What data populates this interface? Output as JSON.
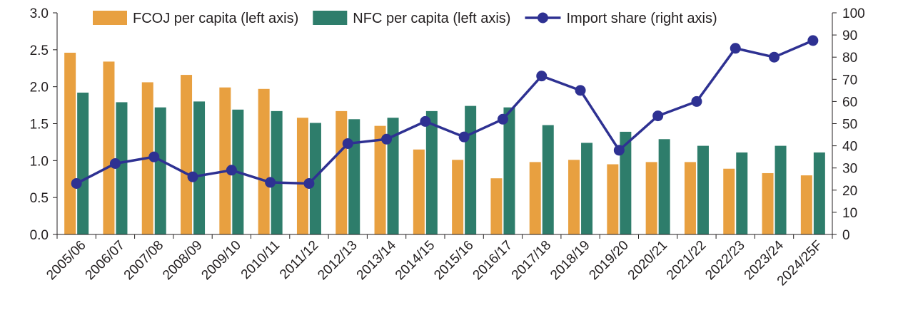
{
  "chart_data": {
    "type": "bar",
    "categories": [
      "2005/06",
      "2006/07",
      "2007/08",
      "2008/09",
      "2009/10",
      "2010/11",
      "2011/12",
      "2012/13",
      "2013/14",
      "2014/15",
      "2015/16",
      "2016/17",
      "2017/18",
      "2018/19",
      "2019/20",
      "2020/21",
      "2021/22",
      "2022/23",
      "2023/24",
      "2024/25F"
    ],
    "series": [
      {
        "name": "FCOJ per capita (left axis)",
        "kind": "bar",
        "axis": "left",
        "color": "#e8a040",
        "values": [
          2.46,
          2.34,
          2.06,
          2.16,
          1.99,
          1.97,
          1.58,
          1.67,
          1.47,
          1.15,
          1.01,
          0.76,
          0.98,
          1.01,
          0.95,
          0.98,
          0.98,
          0.89,
          0.83,
          0.8
        ]
      },
      {
        "name": "NFC per capita (left axis)",
        "kind": "bar",
        "axis": "left",
        "color": "#2e7d6b",
        "values": [
          1.92,
          1.79,
          1.72,
          1.8,
          1.69,
          1.67,
          1.51,
          1.56,
          1.58,
          1.67,
          1.74,
          1.72,
          1.48,
          1.24,
          1.39,
          1.29,
          1.2,
          1.11,
          1.2,
          1.11
        ]
      },
      {
        "name": "Import share (right axis)",
        "kind": "line",
        "axis": "right",
        "color": "#2e3192",
        "values": [
          23,
          32,
          35,
          26,
          29,
          23.5,
          23,
          41,
          43,
          51,
          44,
          52,
          71.5,
          65,
          38,
          53.5,
          60,
          84,
          80,
          87.5
        ]
      }
    ],
    "left_ticks": [
      "0.0",
      "0.5",
      "1.0",
      "1.5",
      "2.0",
      "2.5",
      "3.0"
    ],
    "right_ticks": [
      "0",
      "10",
      "20",
      "30",
      "40",
      "50",
      "60",
      "70",
      "80",
      "90",
      "100"
    ],
    "ylim_left": [
      0,
      3
    ],
    "ylim_right": [
      0,
      100
    ],
    "grid": false,
    "legend_position": "top"
  }
}
